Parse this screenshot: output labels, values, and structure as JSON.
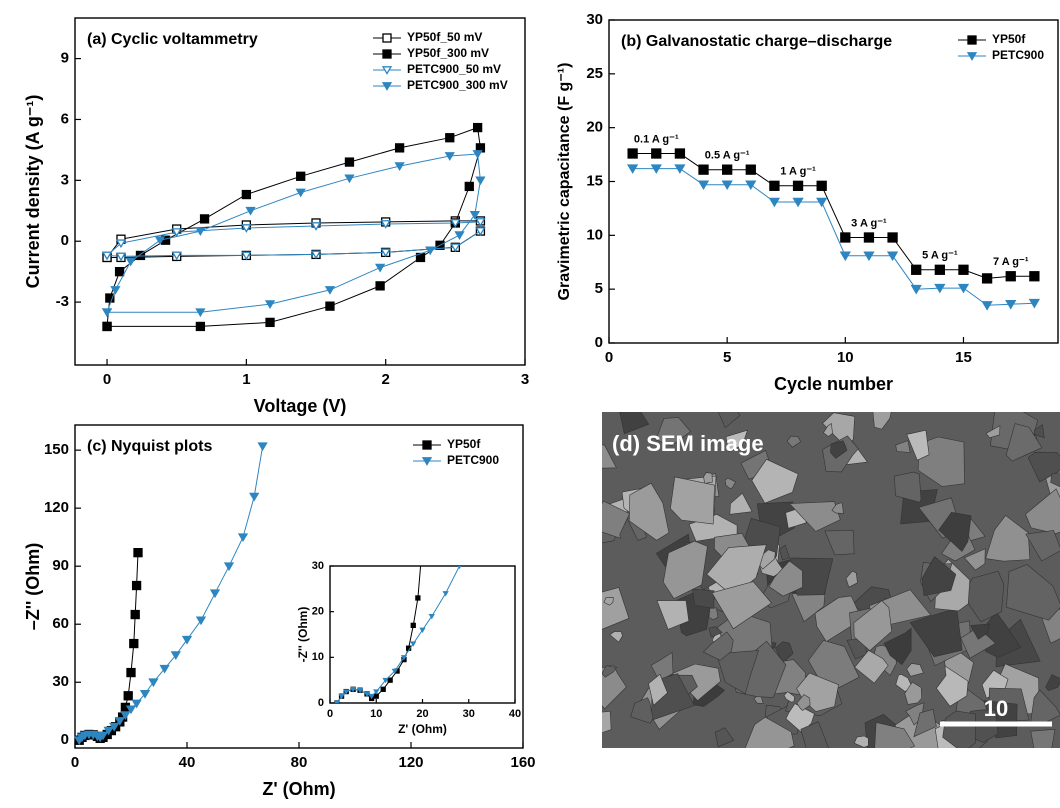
{
  "chart_data": [
    {
      "type": "line",
      "title": "(a) Cyclic voltammetry",
      "xlabel": "Voltage (V)",
      "ylabel": "Current density (A g⁻¹)",
      "xlim": [
        -0.23,
        3
      ],
      "ylim": [
        -6.1,
        11.0
      ],
      "xticks": [
        0,
        1,
        2,
        3
      ],
      "yticks": [
        -3,
        0,
        3,
        6,
        9
      ],
      "legend": "upper right",
      "series": [
        {
          "name": "YP50f_50 mV",
          "color": "#000000",
          "marker": "square",
          "filled": false,
          "x": [
            0,
            0.1,
            0.5,
            1.0,
            1.5,
            2.0,
            2.5,
            2.68,
            2.68,
            2.5,
            2.0,
            1.5,
            1.0,
            0.5,
            0.1,
            0
          ],
          "values": [
            -0.8,
            0.1,
            0.6,
            0.8,
            0.9,
            0.95,
            1.0,
            1.0,
            0.5,
            -0.3,
            -0.55,
            -0.65,
            -0.7,
            -0.75,
            -0.8,
            -0.8
          ]
        },
        {
          "name": "YP50f_300 mV",
          "color": "#000000",
          "marker": "square",
          "filled": true,
          "x": [
            0,
            0.02,
            0.09,
            0.24,
            0.42,
            0.7,
            1.0,
            1.39,
            1.74,
            2.1,
            2.46,
            2.66,
            2.68,
            2.6,
            2.5,
            2.39,
            2.25,
            1.96,
            1.6,
            1.17,
            0.67,
            0
          ],
          "values": [
            -4.2,
            -2.8,
            -1.5,
            -0.7,
            0.05,
            1.1,
            2.3,
            3.2,
            3.9,
            4.6,
            5.1,
            5.6,
            4.6,
            2.7,
            0.9,
            -0.2,
            -0.8,
            -2.2,
            -3.2,
            -4.0,
            -4.2,
            -4.2
          ]
        },
        {
          "name": "PETC900_50 mV",
          "color": "#2e86c1",
          "marker": "triangle-down",
          "filled": false,
          "x": [
            0,
            0.1,
            0.5,
            1.0,
            1.5,
            2.0,
            2.5,
            2.68,
            2.68,
            2.5,
            2.0,
            1.5,
            1.0,
            0.5,
            0.1,
            0
          ],
          "values": [
            -0.7,
            -0.1,
            0.45,
            0.65,
            0.75,
            0.85,
            0.9,
            0.95,
            0.5,
            -0.3,
            -0.55,
            -0.65,
            -0.7,
            -0.7,
            -0.75,
            -0.7
          ]
        },
        {
          "name": "PETC900_300 mV",
          "color": "#2e86c1",
          "marker": "triangle-down",
          "filled": true,
          "x": [
            0,
            0.06,
            0.17,
            0.38,
            0.67,
            1.03,
            1.39,
            1.74,
            2.1,
            2.46,
            2.66,
            2.68,
            2.64,
            2.53,
            2.32,
            1.96,
            1.6,
            1.17,
            0.67,
            0
          ],
          "values": [
            -3.5,
            -2.4,
            -1.0,
            0.05,
            0.5,
            1.5,
            2.4,
            3.1,
            3.7,
            4.2,
            4.3,
            3.0,
            1.3,
            0.3,
            -0.45,
            -1.3,
            -2.4,
            -3.1,
            -3.5,
            -3.5
          ]
        }
      ]
    },
    {
      "type": "line",
      "title": "(b) Galvanostatic charge–discharge",
      "xlabel": "Cycle number",
      "ylabel": "Gravimetric capacitance (F g⁻¹)",
      "xlim": [
        0,
        19
      ],
      "ylim": [
        0,
        30
      ],
      "xticks": [
        0,
        5,
        10,
        15
      ],
      "yticks": [
        0,
        5,
        10,
        15,
        20,
        25,
        30
      ],
      "legend": "upper right",
      "x": [
        1,
        2,
        3,
        4,
        5,
        6,
        7,
        8,
        9,
        10,
        11,
        12,
        13,
        14,
        15,
        16,
        17,
        18
      ],
      "annotations": [
        "0.1 A g⁻¹",
        "0.5 A g⁻¹",
        "1 A g⁻¹",
        "3 A g⁻¹",
        "5 A g⁻¹",
        "7 A g⁻¹"
      ],
      "series": [
        {
          "name": "YP50f",
          "color": "#000000",
          "marker": "square",
          "filled": true,
          "values": [
            17.6,
            17.6,
            17.6,
            16.1,
            16.1,
            16.1,
            14.6,
            14.6,
            14.6,
            9.8,
            9.8,
            9.8,
            6.8,
            6.8,
            6.8,
            6.0,
            6.2,
            6.2
          ]
        },
        {
          "name": "PETC900",
          "color": "#2e86c1",
          "marker": "triangle-down",
          "filled": true,
          "values": [
            16.2,
            16.2,
            16.2,
            14.7,
            14.7,
            14.7,
            13.1,
            13.1,
            13.1,
            8.1,
            8.1,
            8.1,
            5.0,
            5.1,
            5.1,
            3.5,
            3.6,
            3.7
          ]
        }
      ]
    },
    {
      "type": "line",
      "title": "(c) Nyquist plots",
      "xlabel": "Z' (Ohm)",
      "ylabel": "–Z'' (Ohm)",
      "xlim": [
        0,
        160
      ],
      "ylim": [
        -4,
        163
      ],
      "xticks": [
        0,
        40,
        80,
        120,
        160
      ],
      "yticks": [
        0,
        30,
        60,
        90,
        120,
        150
      ],
      "legend": "upper right",
      "series": [
        {
          "name": "YP50f",
          "color": "#000000",
          "marker": "square",
          "filled": true,
          "x": [
            1.5,
            2.5,
            3.5,
            5,
            6.5,
            8,
            9,
            10,
            11.5,
            13,
            14.5,
            16,
            17,
            18,
            19,
            20,
            21,
            21.5,
            22,
            22.5
          ],
          "values": [
            0,
            1.5,
            2.5,
            3,
            2.8,
            2,
            1,
            1.5,
            3,
            5,
            7,
            9.5,
            12,
            17,
            23,
            35,
            50,
            65,
            80,
            97
          ]
        },
        {
          "name": "PETC900",
          "color": "#2e86c1",
          "marker": "triangle-down",
          "filled": true,
          "x": [
            1.5,
            2.5,
            3.5,
            5,
            6.5,
            8,
            9,
            10,
            12,
            14,
            16,
            18,
            20,
            22,
            25,
            28,
            32,
            36,
            40,
            45,
            50,
            55,
            60,
            64,
            67
          ],
          "values": [
            0,
            1.5,
            2.5,
            3,
            2.8,
            2,
            1.5,
            2.5,
            5,
            7,
            10,
            13,
            16,
            19,
            24,
            30,
            37,
            44,
            52,
            62,
            76,
            90,
            105,
            126,
            152
          ]
        }
      ],
      "inset": {
        "xlabel": "Z' (Ohm)",
        "ylabel": "-Z'' (Ohm)",
        "xlim": [
          0,
          40
        ],
        "ylim": [
          0,
          30
        ],
        "xticks": [
          0,
          10,
          20,
          30,
          40
        ],
        "yticks": [
          0,
          10,
          20,
          30
        ]
      }
    }
  ],
  "image": {
    "label": "(d) SEM image",
    "scale_bar": "10"
  }
}
